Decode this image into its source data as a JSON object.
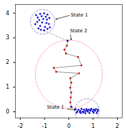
{
  "chart_data": {
    "type": "scatter",
    "xlim": [
      -2.2,
      2.2
    ],
    "ylim": [
      -0.25,
      4.35
    ],
    "xticks": [
      -2,
      -1,
      0,
      1,
      2
    ],
    "yticks": [
      0,
      1,
      2,
      3,
      4
    ],
    "grid": false,
    "circles": [
      {
        "center": [
          -1.08,
          3.65
        ],
        "radius": 0.5,
        "color": "#7777bb",
        "line_style": "dashed"
      },
      {
        "center": [
          0.0,
          1.52
        ],
        "radius": 1.38,
        "color": "#ff88aa",
        "line_style": "dashed"
      },
      {
        "center": [
          0.75,
          0.03
        ],
        "radius": 0.5,
        "color": "#7777bb",
        "line_style": "dashed"
      }
    ],
    "series": [
      {
        "type": "line",
        "color": "#9999bb",
        "line_style": "dashed",
        "x": [
          -1.05,
          -0.05
        ],
        "y": [
          3.3,
          2.88
        ]
      },
      {
        "type": "line",
        "color": "#9999bb",
        "line_style": "dashed",
        "x": [
          0.1,
          0.28
        ],
        "y": [
          0.2,
          0.1
        ]
      },
      {
        "type": "line",
        "color": "#777777",
        "line_style": "solid",
        "x": [
          -0.05,
          -0.08,
          -0.18,
          -0.12,
          0.38,
          0.52,
          -0.62,
          -0.52,
          0.42,
          0.06,
          0.1,
          0.06,
          0.1,
          0.08,
          0.06,
          0.1
        ],
        "y": [
          2.88,
          2.68,
          2.52,
          2.36,
          2.22,
          1.88,
          1.78,
          1.62,
          1.56,
          1.36,
          1.18,
          0.98,
          0.78,
          0.58,
          0.38,
          0.2
        ]
      },
      {
        "type": "scatter",
        "color": "#cc1111",
        "x": [
          -0.05,
          -0.08,
          -0.18,
          -0.12,
          0.38,
          0.52,
          -0.62,
          -0.52,
          0.42,
          0.06,
          0.1,
          0.06,
          0.1,
          0.08,
          0.06,
          0.1
        ],
        "y": [
          2.88,
          2.68,
          2.52,
          2.36,
          2.22,
          1.88,
          1.78,
          1.62,
          1.56,
          1.36,
          1.18,
          0.98,
          0.78,
          0.58,
          0.38,
          0.2
        ]
      },
      {
        "type": "scatter",
        "color": "#1111cc",
        "x": [
          -1.35,
          -1.18,
          -1.02,
          -0.88,
          -1.28,
          -1.12,
          -0.95,
          -0.8,
          -1.22,
          -1.05,
          -0.9,
          -1.3,
          -1.1,
          -0.92,
          -1.38,
          -0.82,
          -1.18,
          -0.98,
          -1.25,
          -0.88,
          -1.15,
          -1.02,
          -0.78
        ],
        "y": [
          3.92,
          3.97,
          3.99,
          3.94,
          3.82,
          3.87,
          3.85,
          3.8,
          3.72,
          3.76,
          3.74,
          3.64,
          3.62,
          3.6,
          3.55,
          3.56,
          3.48,
          3.44,
          3.38,
          3.36,
          3.32,
          3.3,
          3.42
        ]
      },
      {
        "type": "scatter",
        "color": "#1111cc",
        "x": [
          0.28,
          0.4,
          0.52,
          0.62,
          0.72,
          0.82,
          0.93,
          1.03,
          1.12,
          1.2,
          0.35,
          0.48,
          0.58,
          0.68,
          0.78,
          0.88,
          0.98,
          1.08,
          1.18,
          0.32,
          0.5,
          0.68,
          0.85,
          1.02,
          1.15,
          0.75,
          0.9,
          1.05,
          0.6,
          0.45
        ],
        "y": [
          0.1,
          0.08,
          0.12,
          0.09,
          0.11,
          0.09,
          0.12,
          0.09,
          0.11,
          0.08,
          0.02,
          0.03,
          0.01,
          0.03,
          0.01,
          0.04,
          0.02,
          0.04,
          0.02,
          -0.04,
          -0.05,
          -0.06,
          -0.05,
          -0.04,
          -0.05,
          0.06,
          0.07,
          0.06,
          -0.02,
          -0.01
        ]
      },
      {
        "type": "scatter",
        "color": "#1111cc",
        "x": [
          -0.05,
          0.1
        ],
        "y": [
          2.88,
          0.2
        ]
      }
    ],
    "annotations": [
      {
        "text": "State 1",
        "xytext": [
          0.08,
          3.92
        ],
        "xy": [
          -0.55,
          3.75
        ],
        "color": "black"
      },
      {
        "text": "State 2",
        "xytext": [
          0.05,
          3.28
        ],
        "xy": [
          0.1,
          2.9
        ],
        "color": "black"
      },
      {
        "text": "State 1",
        "xytext": [
          -0.9,
          0.18
        ],
        "xy": [
          0.28,
          0.08
        ],
        "color": "black"
      }
    ]
  }
}
